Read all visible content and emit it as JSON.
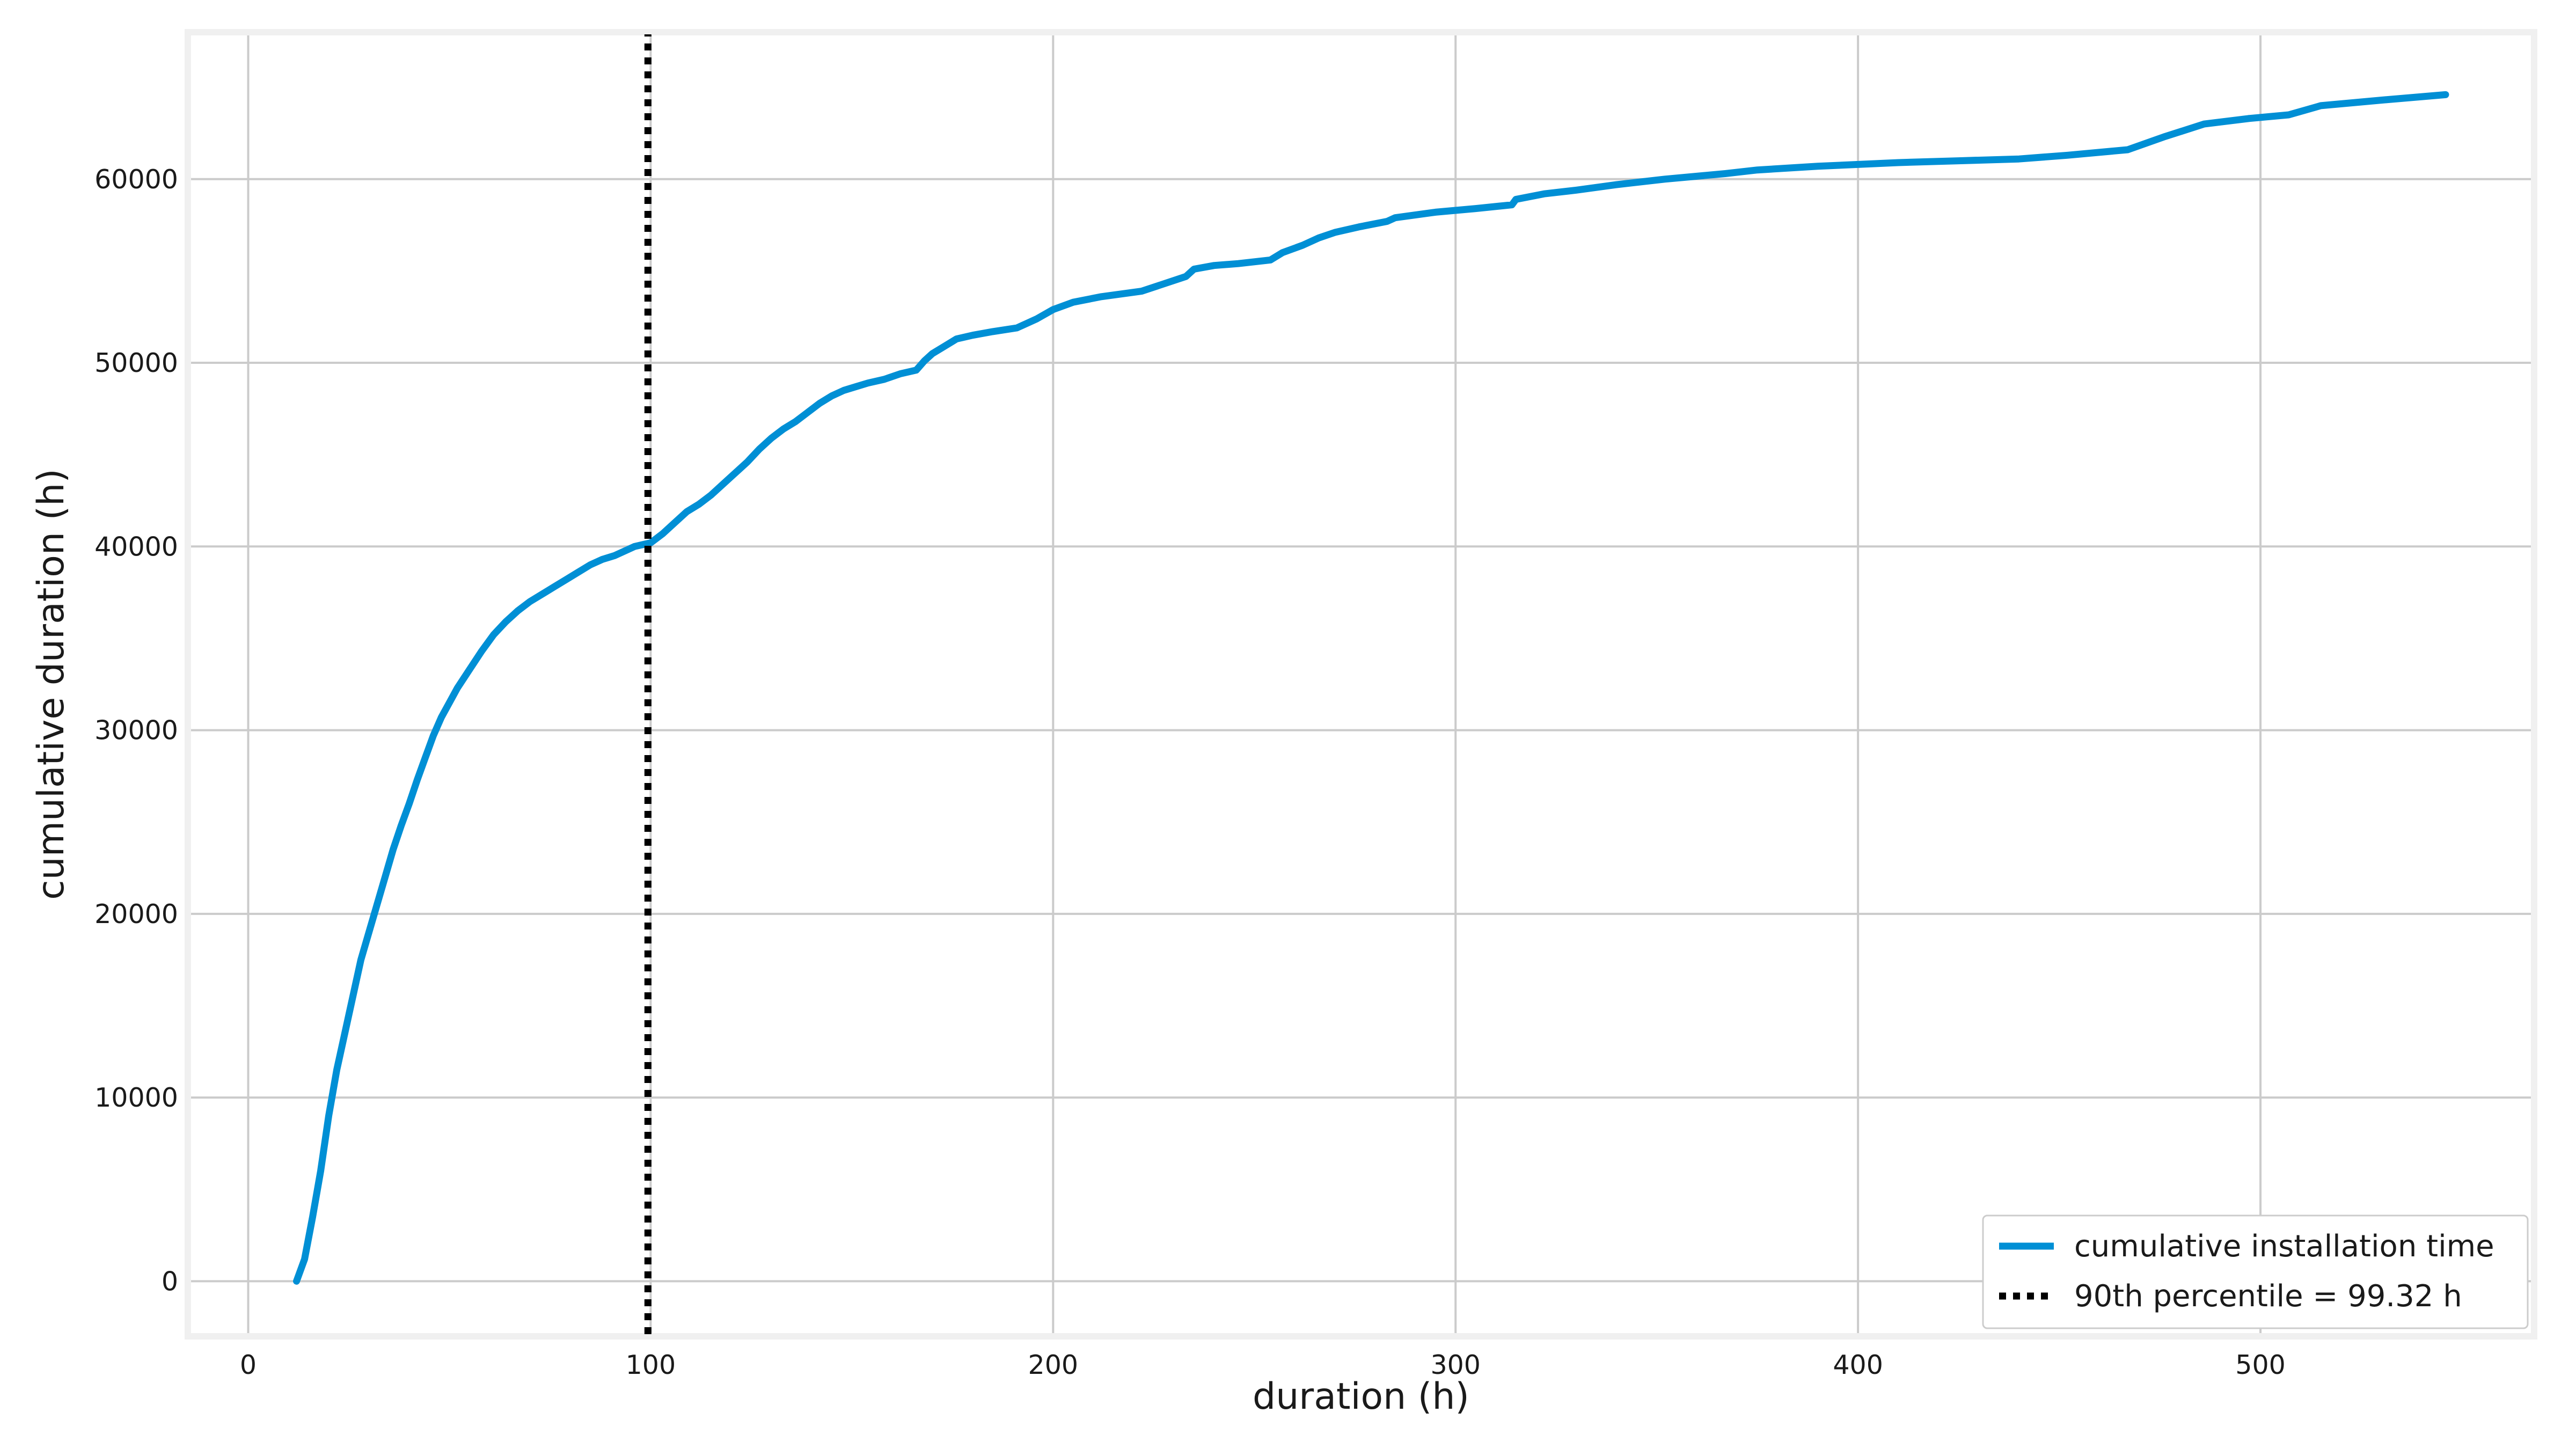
{
  "colors": {
    "series": "#008fd5",
    "percentile_line": "#000000",
    "grid": "#cbcbcb",
    "frame": "#f0f0f0",
    "background": "#ffffff"
  },
  "chart_data": {
    "type": "line",
    "title": "",
    "xlabel": "duration (h)",
    "ylabel": "cumulative duration (h)",
    "xlim": [
      -15,
      568
    ],
    "ylim": [
      -3000,
      68000
    ],
    "xticks": [
      0,
      100,
      200,
      300,
      400,
      500
    ],
    "yticks": [
      0,
      10000,
      20000,
      30000,
      40000,
      50000,
      60000
    ],
    "grid": true,
    "legend_position": "bottom-right",
    "series": [
      {
        "name": "cumulative installation time",
        "style": "solid",
        "x": [
          12,
          14,
          16,
          18,
          20,
          22,
          24,
          26,
          28,
          30,
          32,
          34,
          36,
          38,
          40,
          42,
          44,
          46,
          48,
          50,
          52,
          55,
          58,
          61,
          64,
          67,
          70,
          73,
          76,
          79,
          82,
          85,
          88,
          91,
          94,
          96,
          98,
          100,
          103,
          106,
          109,
          112,
          115,
          118,
          121,
          124,
          127,
          130,
          133,
          136,
          139,
          142,
          145,
          148,
          151,
          154,
          158,
          162,
          166,
          168,
          170,
          173,
          176,
          180,
          185,
          191,
          196,
          200,
          205,
          212,
          222,
          233,
          235,
          240,
          246,
          254,
          257,
          262,
          266,
          270,
          276,
          283,
          285,
          295,
          305,
          314,
          315,
          322,
          330,
          340,
          352,
          367,
          375,
          390,
          410,
          425,
          440,
          452,
          467,
          476,
          486,
          497,
          507,
          515,
          530,
          546
        ],
        "y": [
          0,
          1200,
          3500,
          6000,
          9000,
          11500,
          13500,
          15500,
          17500,
          19000,
          20500,
          22000,
          23500,
          24800,
          26000,
          27300,
          28500,
          29700,
          30700,
          31500,
          32300,
          33300,
          34300,
          35200,
          35900,
          36500,
          37000,
          37400,
          37800,
          38200,
          38600,
          39000,
          39300,
          39500,
          39800,
          40000,
          40100,
          40200,
          40700,
          41300,
          41900,
          42300,
          42800,
          43400,
          44000,
          44600,
          45300,
          45900,
          46400,
          46800,
          47300,
          47800,
          48200,
          48500,
          48700,
          48900,
          49100,
          49400,
          49600,
          50100,
          50500,
          50900,
          51300,
          51500,
          51700,
          51900,
          52400,
          52900,
          53300,
          53600,
          53900,
          54700,
          55100,
          55300,
          55400,
          55600,
          56000,
          56400,
          56800,
          57100,
          57400,
          57700,
          57900,
          58200,
          58400,
          58600,
          58900,
          59200,
          59400,
          59700,
          60000,
          60300,
          60500,
          60700,
          60900,
          61000,
          61100,
          61300,
          61600,
          62300,
          63000,
          63300,
          63500,
          64000,
          64300,
          64600
        ]
      },
      {
        "name": "90th percentile = 99.32 h",
        "style": "dotted",
        "x": [
          99.32,
          99.32
        ],
        "y": [
          -3000,
          68000
        ]
      }
    ]
  }
}
